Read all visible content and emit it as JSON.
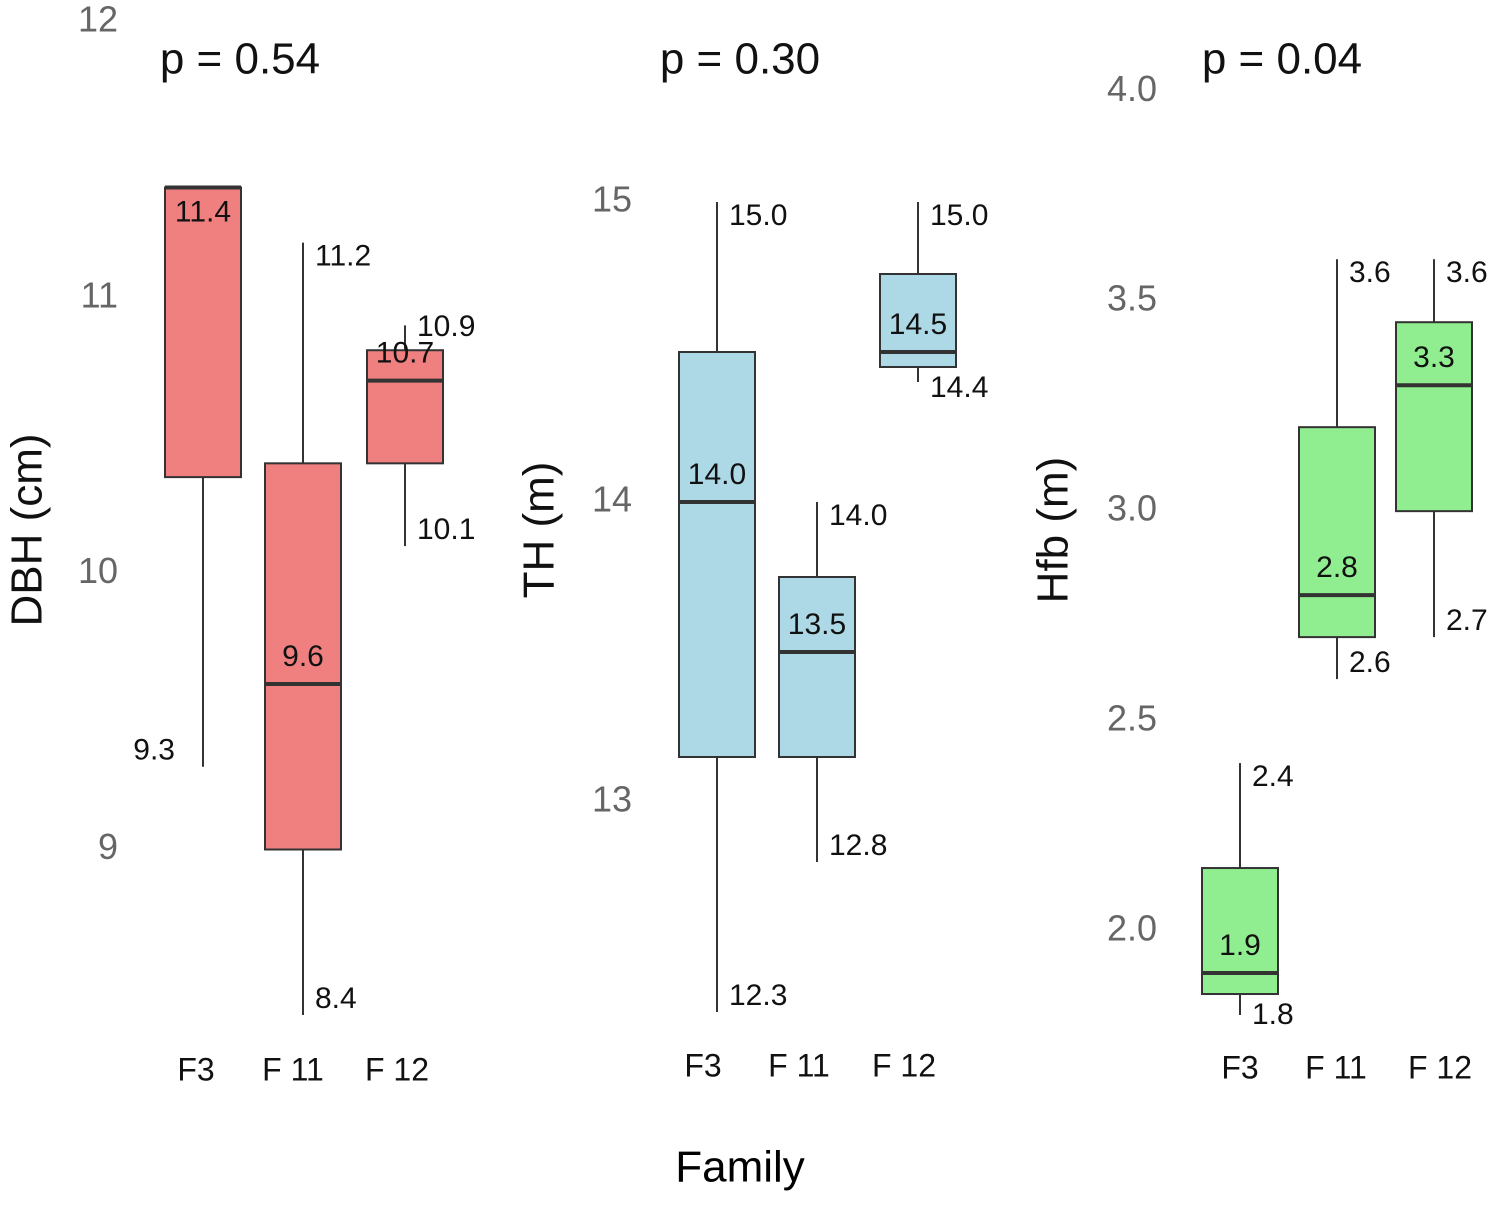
{
  "chart_data": [
    {
      "type": "box",
      "title": "p = 0.54",
      "ylabel": "DBH (cm)",
      "categories": [
        "F3",
        "F 11",
        "F 12"
      ],
      "color": "#f08080",
      "ylim": [
        8.4,
        12
      ],
      "yticks": [
        9,
        10,
        11,
        12
      ],
      "min": [
        9.3,
        8.4,
        10.1
      ],
      "q1": [
        10.35,
        9.0,
        10.4
      ],
      "median": [
        11.4,
        9.6,
        10.7
      ],
      "q3": [
        11.4,
        10.4,
        10.81
      ],
      "max": [
        11.4,
        11.2,
        10.9
      ],
      "min_labels": [
        "9.3",
        "8.4",
        "10.1"
      ],
      "median_labels": [
        "11.4",
        "9.6",
        "10.7"
      ],
      "max_labels": [
        null,
        "11.2",
        "10.9"
      ]
    },
    {
      "type": "box",
      "title": "p = 0.30",
      "ylabel": "TH (m)",
      "categories": [
        "F3",
        "F 11",
        "F 12"
      ],
      "color": "#add8e6",
      "ylim": [
        12.29,
        15.6
      ],
      "yticks": [
        13,
        14,
        15
      ],
      "min": [
        12.3,
        12.8,
        14.4
      ],
      "q1": [
        13.15,
        13.15,
        14.45
      ],
      "median": [
        14.0,
        13.5,
        14.5
      ],
      "q3": [
        14.5,
        13.75,
        14.76
      ],
      "max": [
        15.0,
        14.0,
        15.0
      ],
      "min_labels": [
        "12.3",
        "12.8",
        "14.4"
      ],
      "median_labels": [
        "14.0",
        "13.5",
        "14.5"
      ],
      "max_labels": [
        "15.0",
        "14.0",
        "15.0"
      ]
    },
    {
      "type": "box",
      "title": "p = 0.04",
      "ylabel": "Hfb (m)",
      "categories": [
        "F3",
        "F 11",
        "F 12"
      ],
      "color": "#90ee90",
      "ylim": [
        1.8,
        4.165
      ],
      "yticks": [
        {
          "value": 2,
          "label": "2.0"
        },
        2.5,
        {
          "value": 3,
          "label": "3.0"
        },
        3.5,
        {
          "value": 4,
          "label": "4.0"
        }
      ],
      "min": [
        1.8,
        2.6,
        2.7
      ],
      "q1": [
        1.85,
        2.7,
        3.0
      ],
      "median": [
        1.9,
        2.8,
        3.3
      ],
      "q3": [
        2.15,
        3.2,
        3.45
      ],
      "max": [
        2.4,
        3.6,
        3.6
      ],
      "min_labels": [
        "1.8",
        "2.6",
        "2.7"
      ],
      "median_labels": [
        "1.9",
        "2.8",
        "3.3"
      ],
      "max_labels": [
        "2.4",
        "3.6",
        "3.6"
      ]
    }
  ],
  "xlabel": "Family"
}
